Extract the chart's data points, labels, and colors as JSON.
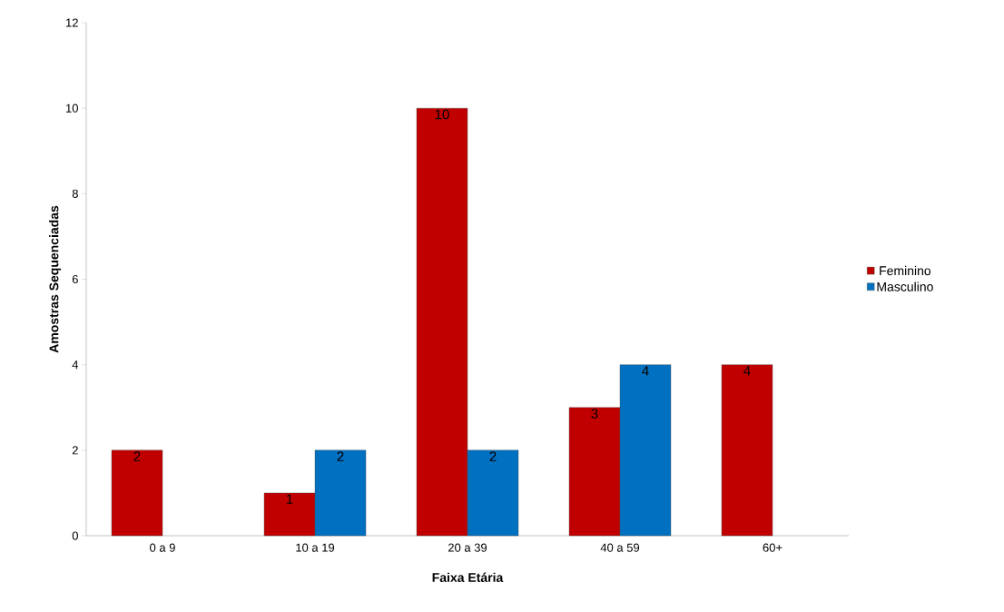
{
  "chart_data": {
    "type": "bar",
    "xlabel": "Faixa Etária",
    "ylabel": "Amostras Sequenciadas",
    "categories": [
      "0 a 9",
      "10 a 19",
      "20 a 39",
      "40 a 59",
      "60+"
    ],
    "series": [
      {
        "name": "Feminino",
        "color": "#c00000",
        "values": [
          2,
          1,
          10,
          3,
          4
        ]
      },
      {
        "name": "Masculino",
        "color": "#0070c0",
        "values": [
          null,
          2,
          2,
          4,
          null
        ]
      }
    ],
    "ylim": [
      0,
      12
    ],
    "yticks": [
      0,
      2,
      4,
      6,
      8,
      10,
      12
    ],
    "grid": false,
    "legend": "right",
    "data_labels": true
  }
}
